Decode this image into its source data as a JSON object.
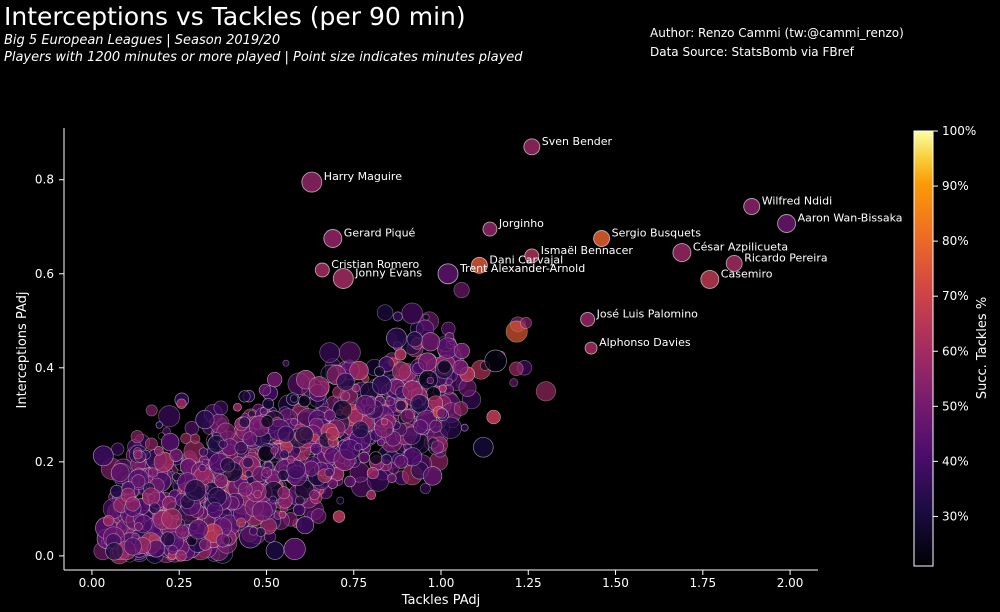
{
  "header": {
    "title": "Interceptions vs Tackles (per 90 min)",
    "subtitle1": "Big 5 European Leagues | Season 2019/20",
    "subtitle2": "Players with 1200 minutes or more played | Point size indicates minutes played",
    "author": "Author: Renzo Cammi (tw:@cammi_renzo)",
    "source": "Data Source: StatsBomb via FBref"
  },
  "chart_data": {
    "type": "scatter",
    "xlabel": "Tackles PAdj",
    "ylabel": "Interceptions PAdj",
    "xlim": [
      -0.08,
      2.08
    ],
    "ylim": [
      -0.03,
      0.91
    ],
    "xticks": [
      0.0,
      0.25,
      0.5,
      0.75,
      1.0,
      1.25,
      1.5,
      1.75,
      2.0
    ],
    "xtick_labels": [
      "0.00",
      "0.25",
      "0.50",
      "0.75",
      "1.00",
      "1.25",
      "1.50",
      "1.75",
      "2.00"
    ],
    "yticks": [
      0.0,
      0.2,
      0.4,
      0.6,
      0.8
    ],
    "ytick_labels": [
      "0.0",
      "0.2",
      "0.4",
      "0.6",
      "0.8"
    ],
    "color_scale": {
      "label": "Succ. Tackles %",
      "range": [
        0.21,
        1.0
      ],
      "ticks": [
        0.3,
        0.4,
        0.5,
        0.6,
        0.7,
        0.8,
        0.9,
        1.0
      ],
      "tick_labels": [
        "30%",
        "40%",
        "50%",
        "60%",
        "70%",
        "80%",
        "90%",
        "100%"
      ]
    },
    "labeled_points": [
      {
        "name": "Sven Bender",
        "x": 1.26,
        "y": 0.87,
        "succ": 0.58,
        "size": 8
      },
      {
        "name": "Harry Maguire",
        "x": 0.63,
        "y": 0.795,
        "succ": 0.56,
        "size": 10
      },
      {
        "name": "Wilfred Ndidi",
        "x": 1.89,
        "y": 0.743,
        "succ": 0.55,
        "size": 8
      },
      {
        "name": "Aaron Wan-Bissaka",
        "x": 1.99,
        "y": 0.707,
        "succ": 0.48,
        "size": 9
      },
      {
        "name": "Jorginho",
        "x": 1.14,
        "y": 0.695,
        "succ": 0.56,
        "size": 7
      },
      {
        "name": "Gerard Piqué",
        "x": 0.69,
        "y": 0.675,
        "succ": 0.57,
        "size": 9
      },
      {
        "name": "Sergio Busquets",
        "x": 1.46,
        "y": 0.675,
        "succ": 0.78,
        "size": 8
      },
      {
        "name": "César Azpilicueta",
        "x": 1.69,
        "y": 0.645,
        "succ": 0.58,
        "size": 9
      },
      {
        "name": "Ismaël Bennacer",
        "x": 1.26,
        "y": 0.638,
        "succ": 0.62,
        "size": 7
      },
      {
        "name": "Ricardo Pereira",
        "x": 1.84,
        "y": 0.622,
        "succ": 0.6,
        "size": 8
      },
      {
        "name": "Dani Carvajal",
        "x": 1.11,
        "y": 0.618,
        "succ": 0.75,
        "size": 8
      },
      {
        "name": "Cristian Romero",
        "x": 0.66,
        "y": 0.608,
        "succ": 0.6,
        "size": 7
      },
      {
        "name": "Trent Alexander-Arnold",
        "x": 1.02,
        "y": 0.6,
        "succ": 0.45,
        "size": 10
      },
      {
        "name": "Jonny Evans",
        "x": 0.72,
        "y": 0.59,
        "succ": 0.6,
        "size": 10
      },
      {
        "name": "Casemiro",
        "x": 1.77,
        "y": 0.588,
        "succ": 0.66,
        "size": 9
      },
      {
        "name": "José Luis Palomino",
        "x": 1.42,
        "y": 0.503,
        "succ": 0.57,
        "size": 7
      },
      {
        "name": "Alphonso Davies",
        "x": 1.43,
        "y": 0.442,
        "succ": 0.6,
        "size": 6
      }
    ],
    "unlabeled_points": {
      "note": "Approximately 1,500 additional players, densely clustered between tackles 0.05-1.2 and interceptions 0.0-0.5.",
      "values_explicit": false
    }
  }
}
